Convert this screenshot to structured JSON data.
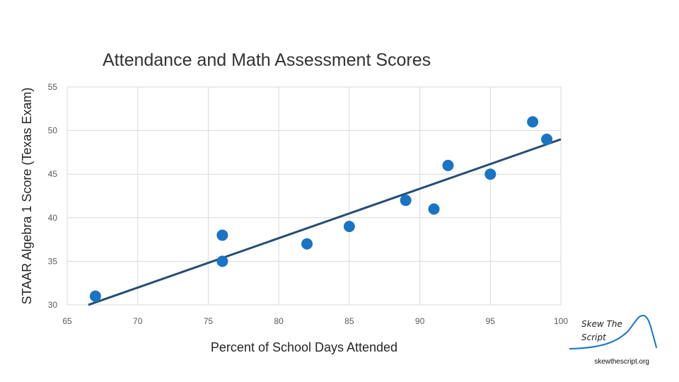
{
  "chart_data": {
    "type": "scatter",
    "title": "Attendance and Math Assessment Scores",
    "xlabel": "Percent of School Days Attended",
    "ylabel": "STAAR Algebra 1 Score (Texas Exam)",
    "xlim": [
      65,
      100
    ],
    "ylim": [
      30,
      55
    ],
    "xticks": [
      65,
      70,
      75,
      80,
      85,
      90,
      95,
      100
    ],
    "yticks": [
      30,
      35,
      40,
      45,
      50,
      55
    ],
    "grid": true,
    "points": [
      {
        "x": 67,
        "y": 31
      },
      {
        "x": 76,
        "y": 38
      },
      {
        "x": 76,
        "y": 35
      },
      {
        "x": 82,
        "y": 37
      },
      {
        "x": 85,
        "y": 39
      },
      {
        "x": 89,
        "y": 42
      },
      {
        "x": 91,
        "y": 41
      },
      {
        "x": 92,
        "y": 46
      },
      {
        "x": 95,
        "y": 45
      },
      {
        "x": 98,
        "y": 51
      },
      {
        "x": 99,
        "y": 49
      }
    ],
    "trendline": {
      "x_start": 66.5,
      "y_start": 30,
      "x_end": 100,
      "y_end": 49
    }
  },
  "branding": {
    "name_line1": "Skew The",
    "name_line2": "Script",
    "url": "skewthescript.org",
    "accent_color": "#1a74c4"
  }
}
